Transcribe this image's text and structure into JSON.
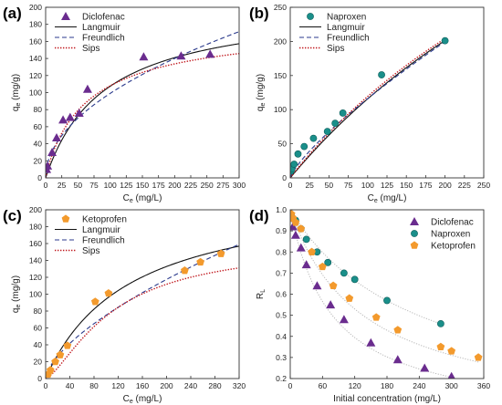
{
  "chart_data": [
    {
      "type": "scatter",
      "panel": "(a)",
      "xlabel": "Ce (mg/L)",
      "ylabel": "qe (mg/g)",
      "xlim": [
        0,
        300
      ],
      "ylim": [
        0,
        200
      ],
      "xticks": [
        0,
        25,
        50,
        75,
        100,
        125,
        150,
        175,
        200,
        225,
        250,
        275,
        300
      ],
      "yticks": [
        0,
        20,
        40,
        60,
        80,
        100,
        120,
        140,
        160,
        180,
        200
      ],
      "legend_position": "top-left",
      "series": [
        {
          "name": "Diclofenac",
          "kind": "points",
          "marker": "triangle",
          "color": "#6a2c8e",
          "x": [
            1.5,
            3,
            10,
            17,
            27,
            38,
            52,
            65,
            152,
            210,
            255
          ],
          "y": [
            10,
            14,
            30,
            47,
            68,
            71,
            76,
            104,
            142,
            143,
            145
          ]
        },
        {
          "name": "Langmuir",
          "kind": "line",
          "style": "solid",
          "color": "#111111",
          "model": "langmuir",
          "params": {
            "qm": 205,
            "K": 0.011
          }
        },
        {
          "name": "Freundlich",
          "kind": "line",
          "style": "dashed",
          "color": "#2b3a8c",
          "model": "freundlich",
          "params": {
            "Kf": 9.9,
            "n": 2
          }
        },
        {
          "name": "Sips",
          "kind": "line",
          "style": "dotted",
          "color": "#c0181e",
          "model": "sips",
          "params": {
            "qm": 182,
            "K": 0.015,
            "n": 1.08
          }
        }
      ]
    },
    {
      "type": "scatter",
      "panel": "(b)",
      "xlabel": "Ce (mg/L)",
      "ylabel": "qe (mg/g)",
      "xlim": [
        0,
        250
      ],
      "ylim": [
        0,
        250
      ],
      "xticks": [
        0,
        25,
        50,
        75,
        100,
        125,
        150,
        175,
        200,
        225,
        250
      ],
      "yticks": [
        0,
        50,
        100,
        150,
        200,
        250
      ],
      "legend_position": "top-left",
      "series": [
        {
          "name": "Naproxen",
          "kind": "points",
          "marker": "circle",
          "color": "#1a8f8a",
          "x": [
            1,
            2,
            5,
            10,
            18,
            30,
            48,
            58,
            68,
            118,
            200
          ],
          "y": [
            10,
            13,
            20,
            35,
            46,
            58,
            68,
            80,
            95,
            151,
            201
          ]
        },
        {
          "name": "Langmuir",
          "kind": "line",
          "style": "solid",
          "color": "#111111",
          "model": "langmuir",
          "params": {
            "qm": 770,
            "K": 0.00177
          }
        },
        {
          "name": "Freundlich",
          "kind": "line",
          "style": "dashed",
          "color": "#2b3a8c",
          "model": "freundlich",
          "params": {
            "Kf": 3.18,
            "n": 1.28
          }
        },
        {
          "name": "Sips",
          "kind": "line",
          "style": "dotted",
          "color": "#c0181e",
          "model": "sips",
          "params": {
            "qm": 760,
            "K": 0.0018,
            "n": 1.02
          }
        }
      ]
    },
    {
      "type": "scatter",
      "panel": "(c)",
      "xlabel": "Ce (mg/L)",
      "ylabel": "qe (mg/g)",
      "xlim": [
        0,
        320
      ],
      "ylim": [
        0,
        200
      ],
      "xticks": [
        0,
        40,
        80,
        120,
        160,
        200,
        240,
        280,
        320
      ],
      "yticks": [
        0,
        20,
        40,
        60,
        80,
        100,
        120,
        140,
        160,
        180,
        200
      ],
      "legend_position": "top-left",
      "series": [
        {
          "name": "Ketoprofen",
          "kind": "points",
          "marker": "pentagon",
          "color": "#f39a2d",
          "x": [
            4,
            8,
            16,
            24,
            36,
            82,
            104,
            230,
            256,
            290
          ],
          "y": [
            5,
            10,
            20,
            28,
            39,
            91,
            101,
            128,
            138,
            148
          ]
        },
        {
          "name": "Langmuir",
          "kind": "line",
          "style": "solid",
          "color": "#111111",
          "model": "langmuir",
          "params": {
            "qm": 225,
            "K": 0.0072
          }
        },
        {
          "name": "Freundlich",
          "kind": "line",
          "style": "dashed",
          "color": "#2b3a8c",
          "model": "freundlich",
          "params": {
            "Kf": 3.85,
            "n": 1.55
          }
        },
        {
          "name": "Sips",
          "kind": "line",
          "style": "dotted",
          "color": "#c0181e",
          "model": "sips",
          "params": {
            "qm": 160,
            "K": 0.009,
            "n": 0.7
          }
        }
      ]
    },
    {
      "type": "scatter",
      "panel": "(d)",
      "xlabel": "Initial concentration (mg/L)",
      "ylabel": "RL",
      "xlim": [
        0,
        360
      ],
      "ylim": [
        0.2,
        1.0
      ],
      "xticks": [
        0,
        60,
        120,
        180,
        240,
        300,
        360
      ],
      "yticks": [
        0.2,
        0.3,
        0.4,
        0.5,
        0.6,
        0.7,
        0.8,
        0.9,
        1.0
      ],
      "legend_position": "top-right",
      "series": [
        {
          "name": "Diclofenac",
          "kind": "points",
          "marker": "triangle",
          "color": "#6a2c8e",
          "x": [
            2,
            5,
            10,
            20,
            30,
            50,
            75,
            100,
            150,
            200,
            250,
            300
          ],
          "y": [
            0.96,
            0.92,
            0.88,
            0.82,
            0.74,
            0.64,
            0.55,
            0.48,
            0.37,
            0.29,
            0.25,
            0.21
          ],
          "fit_K": 0.0128
        },
        {
          "name": "Naproxen",
          "kind": "points",
          "marker": "circle",
          "color": "#1a8f8a",
          "x": [
            2,
            5,
            10,
            20,
            30,
            50,
            70,
            100,
            120,
            180,
            280
          ],
          "y": [
            0.97,
            0.96,
            0.95,
            0.91,
            0.86,
            0.8,
            0.75,
            0.7,
            0.67,
            0.57,
            0.46
          ],
          "fit_K": 0.0042
        },
        {
          "name": "Ketoprofen",
          "kind": "points",
          "marker": "pentagon",
          "color": "#f39a2d",
          "x": [
            2,
            5,
            10,
            20,
            40,
            60,
            80,
            110,
            160,
            200,
            280,
            300,
            350
          ],
          "y": [
            0.98,
            0.96,
            0.94,
            0.91,
            0.8,
            0.73,
            0.64,
            0.58,
            0.49,
            0.43,
            0.35,
            0.33,
            0.3
          ],
          "fit_K": 0.0074
        }
      ]
    }
  ]
}
